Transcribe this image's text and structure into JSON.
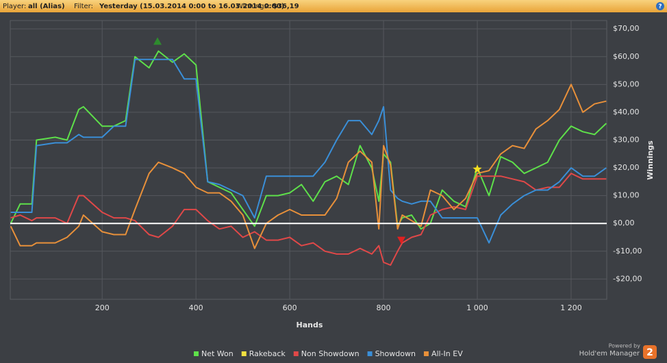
{
  "header": {
    "player_label": "Player:",
    "player": "all (Alias)",
    "filter_label": "Filter:",
    "filter": "Yesterday (15.03.2014 0:00 to 16.03.2014 0:00)",
    "winnings_label": "Winnings:",
    "winnings": "$36,19"
  },
  "footer": {
    "powered": "Powered by",
    "brand": "Hold'em Manager",
    "version": "2"
  },
  "chart_data": {
    "type": "line",
    "x_label": "Hands",
    "y_label": "Winnings",
    "grid": true,
    "xlim": [
      4,
      1276
    ],
    "ylim": [
      -27.3,
      73
    ],
    "xticks": [
      200,
      400,
      600,
      800,
      {
        "value": 1000,
        "label": "1 000"
      },
      {
        "value": 1200,
        "label": "1 200"
      }
    ],
    "yticks": [
      {
        "value": -20,
        "label": "-$20,00"
      },
      {
        "value": -10,
        "label": "-$10,00"
      },
      {
        "value": 0,
        "label": "$0,00"
      },
      {
        "value": 10,
        "label": "$10,00"
      },
      {
        "value": 20,
        "label": "$20,00"
      },
      {
        "value": 30,
        "label": "$30,00"
      },
      {
        "value": 40,
        "label": "$40,00"
      },
      {
        "value": 50,
        "label": "$50,00"
      },
      {
        "value": 60,
        "label": "$60,00"
      },
      {
        "value": 70,
        "label": "$70,00"
      }
    ],
    "x": [
      5,
      25,
      50,
      60,
      100,
      125,
      150,
      160,
      200,
      225,
      250,
      270,
      300,
      320,
      350,
      375,
      400,
      425,
      450,
      475,
      500,
      525,
      550,
      575,
      600,
      625,
      650,
      675,
      700,
      725,
      750,
      775,
      790,
      800,
      815,
      830,
      840,
      860,
      880,
      900,
      925,
      950,
      975,
      1000,
      1025,
      1050,
      1075,
      1100,
      1125,
      1150,
      1175,
      1200,
      1225,
      1250,
      1275
    ],
    "series": [
      {
        "name": "Net Won",
        "color": "#5ee04a",
        "values": [
          0,
          7,
          7,
          30,
          31,
          30,
          41,
          42,
          35,
          35,
          37,
          60,
          56,
          62,
          58,
          61,
          57,
          15,
          13,
          11,
          5,
          -1,
          10,
          10,
          11,
          14,
          8,
          15,
          17,
          14,
          28,
          20,
          8,
          25,
          22,
          -1,
          2,
          3,
          -2,
          0,
          12,
          8,
          6,
          20,
          10,
          24,
          22,
          18,
          20,
          22,
          30,
          35,
          33,
          32,
          36
        ]
      },
      {
        "name": "Rakeback",
        "color": "#f0e040"
      },
      {
        "name": "Non Showdown",
        "color": "#e04848",
        "values": [
          2,
          3,
          1,
          2,
          2,
          0,
          10,
          10,
          4,
          2,
          2,
          1,
          -4,
          -5,
          -1,
          5,
          5,
          1,
          -2,
          -1,
          -5,
          -3,
          -6,
          -6,
          -5,
          -8,
          -7,
          -10,
          -11,
          -11,
          -9,
          -11,
          -8,
          -14,
          -15,
          -10,
          -7,
          -5,
          -4,
          3,
          5,
          6,
          5,
          17,
          17,
          17,
          16,
          15,
          12,
          13,
          13,
          18,
          16,
          16,
          16
        ]
      },
      {
        "name": "Showdown",
        "color": "#3a8fd8",
        "values": [
          4,
          4,
          4,
          28,
          29,
          29,
          32,
          31,
          31,
          35,
          35,
          59,
          59,
          59,
          59,
          52,
          52,
          15,
          14,
          12,
          10,
          2,
          17,
          17,
          17,
          17,
          17,
          22,
          30,
          37,
          37,
          32,
          37,
          42,
          12,
          9,
          8,
          7,
          8,
          8,
          2,
          2,
          2,
          2,
          -7,
          3,
          7,
          10,
          12,
          12,
          15,
          20,
          17,
          17,
          20
        ]
      },
      {
        "name": "All-In EV",
        "color": "#e8903a",
        "values": [
          -1,
          -8,
          -8,
          -7,
          -7,
          -5,
          -1,
          3,
          -3,
          -4,
          -4,
          5,
          18,
          22,
          20,
          18,
          13,
          11,
          11,
          8,
          3,
          -9,
          0,
          3,
          5,
          3,
          3,
          3,
          9,
          22,
          26,
          22,
          -2,
          28,
          21,
          -2,
          3,
          1,
          -1,
          12,
          10,
          5,
          9,
          18,
          19,
          25,
          28,
          27,
          34,
          37,
          41,
          50,
          40,
          43,
          44
        ]
      }
    ],
    "markers": [
      {
        "shape": "triangle-up",
        "color": "#2e8b2e",
        "x": 318,
        "y": 65.5
      },
      {
        "shape": "triangle-down",
        "color": "#e02020",
        "x": 838,
        "y": -6
      },
      {
        "shape": "star",
        "color": "#f5e020",
        "x": 1000,
        "y": 19.5
      }
    ]
  }
}
